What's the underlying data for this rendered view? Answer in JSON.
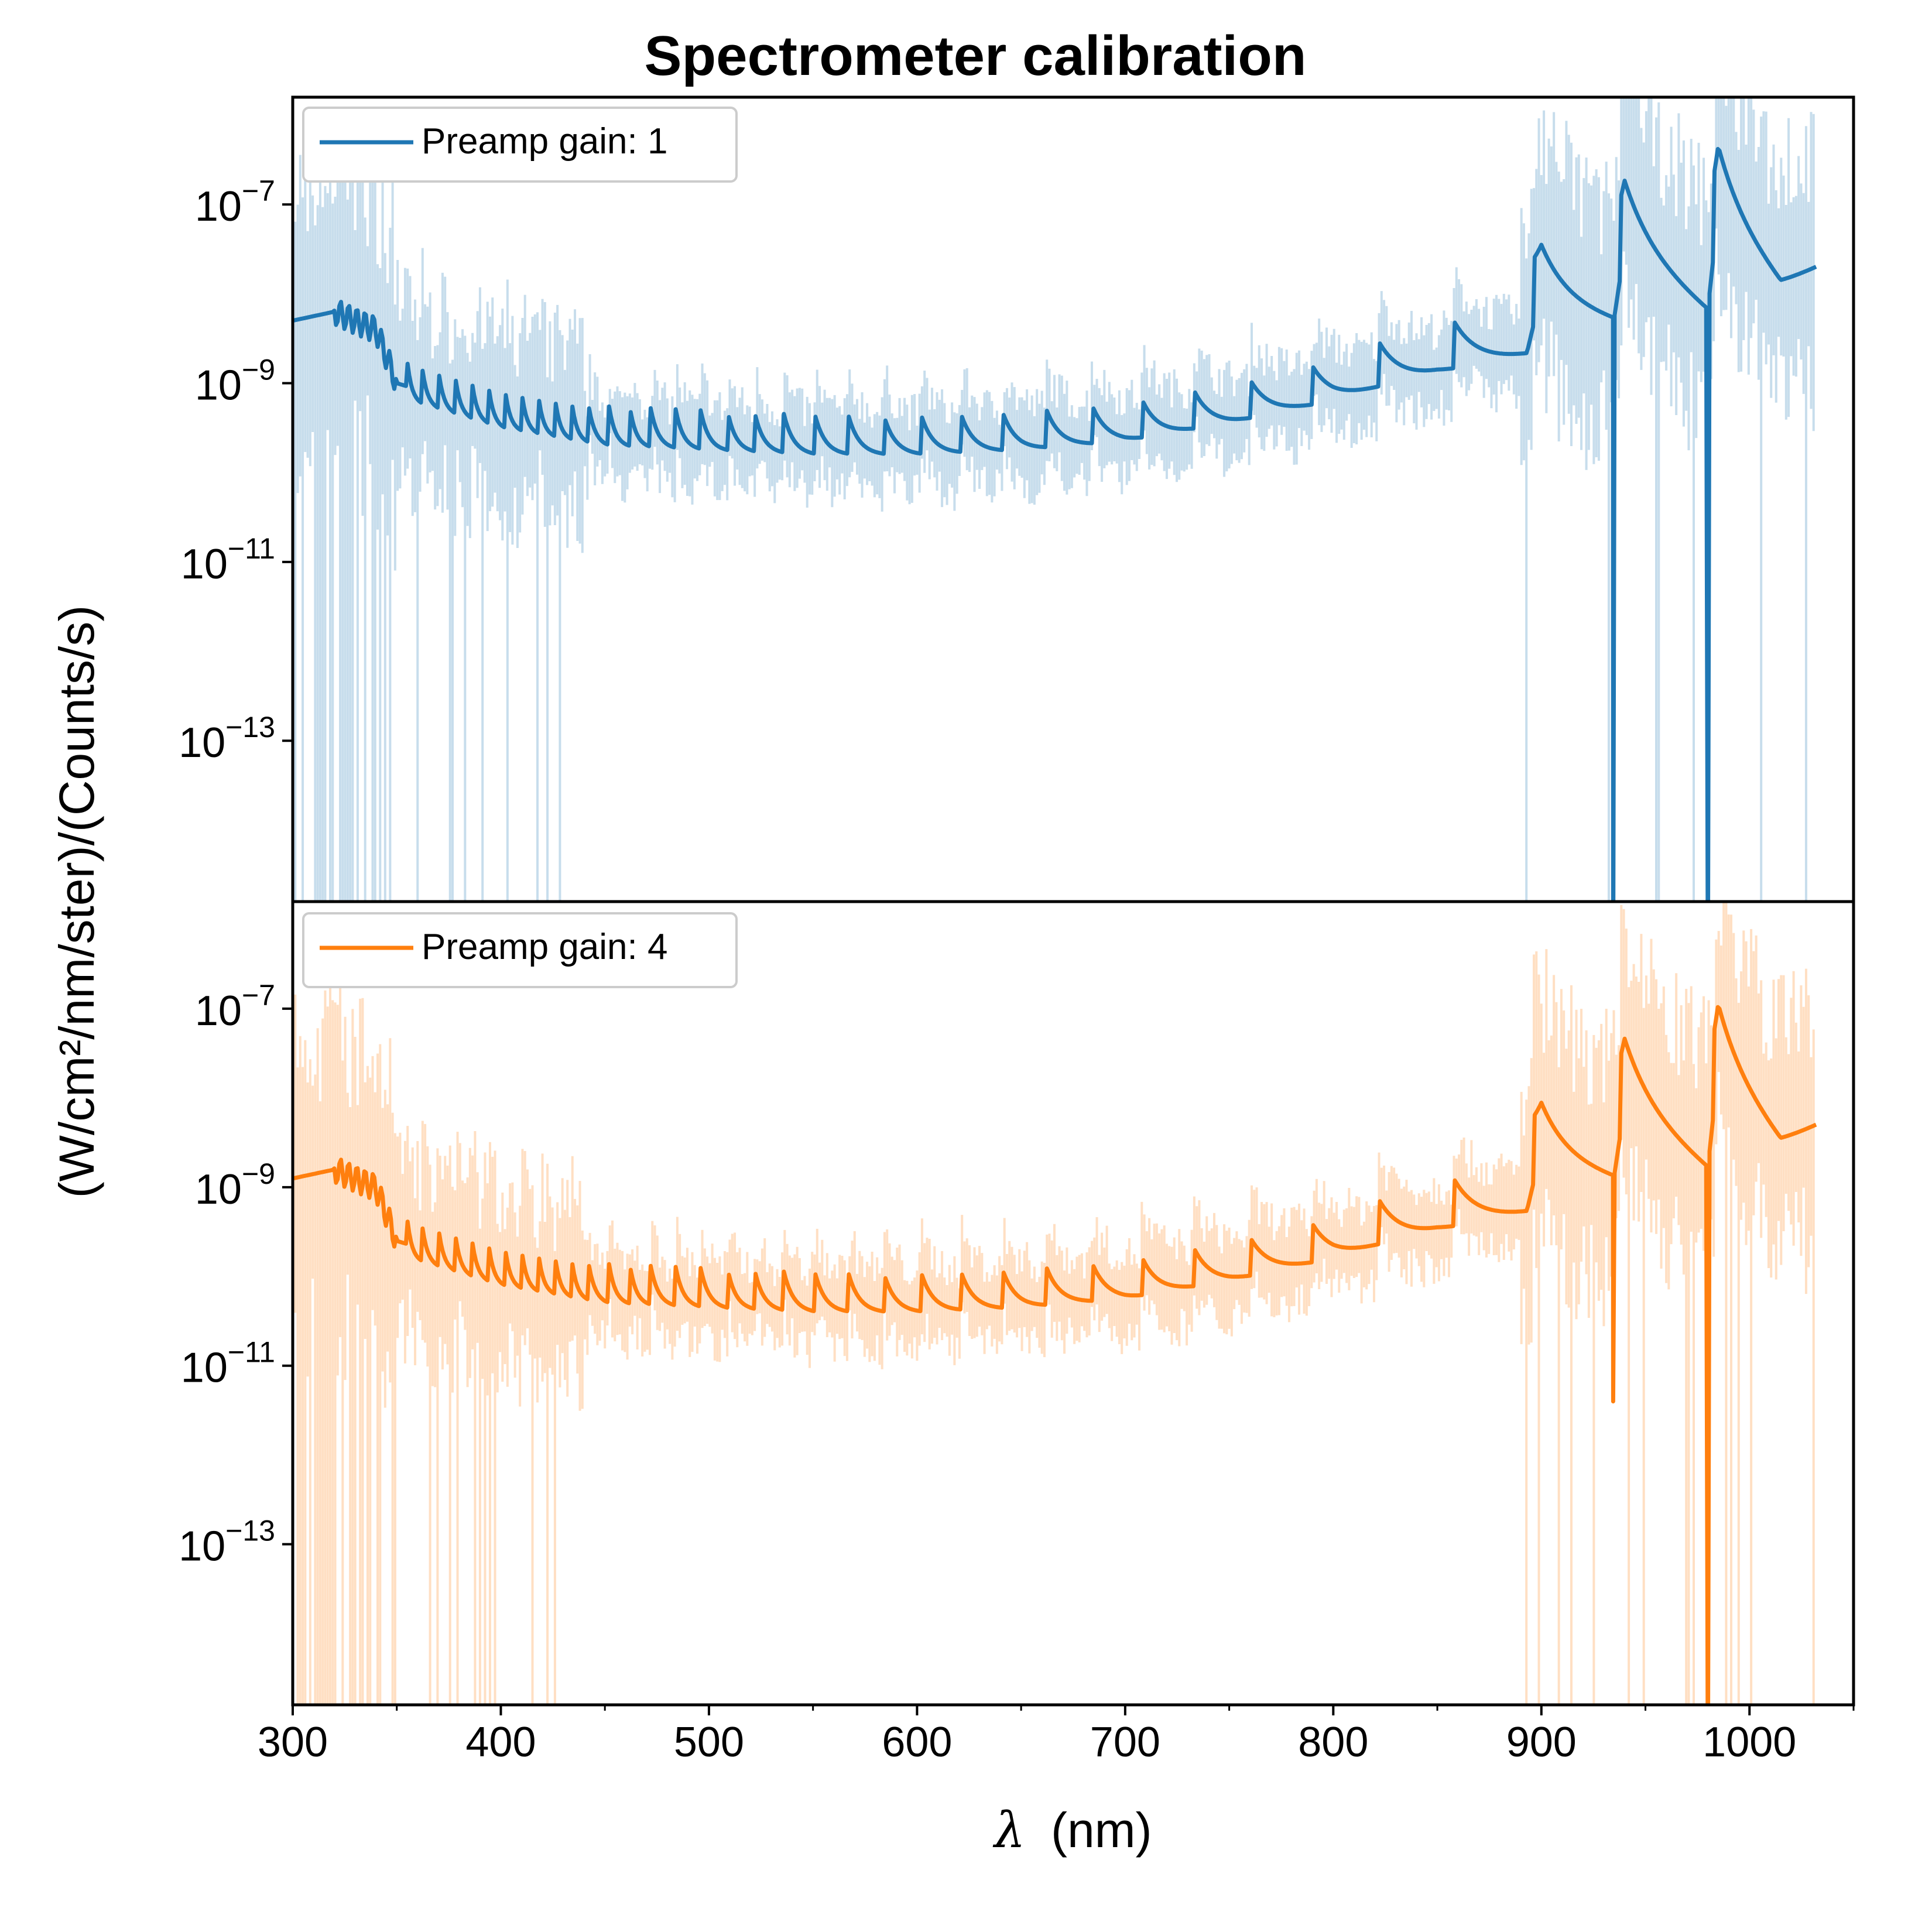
{
  "chart_data": {
    "type": "line",
    "title": "Spectrometer calibration",
    "xlabel_symbol": "λ",
    "xlabel_unit": "(nm)",
    "ylabel": "(W/cm²/nm/ster)/(Counts/s)",
    "xlim": [
      300,
      1050
    ],
    "x_ticks": [
      "300",
      "400",
      "500",
      "600",
      "700",
      "800",
      "900",
      "1000"
    ],
    "y_scale": "log",
    "y_tick_base": "10",
    "y_tick_exponents": [
      "−7",
      "−9",
      "−11",
      "−13"
    ],
    "panels": [
      {
        "legend": "Preamp gain: 1",
        "color": "#1f77b4",
        "band_color": "#1f77b4",
        "ylim_log10": [
          -14.8,
          -5.8
        ],
        "scale_factor": 1.0,
        "dip_at_935": "full",
        "legend_position": "upper-left"
      },
      {
        "legend": "Preamp gain: 4",
        "color": "#ff7f0e",
        "band_color": "#ff7f0e",
        "ylim_log10": [
          -14.8,
          -5.8
        ],
        "scale_factor": 0.25,
        "dip_at_935": "partial",
        "legend_position": "upper-left"
      }
    ],
    "x": [
      300,
      320,
      340,
      350,
      400,
      450,
      500,
      550,
      600,
      650,
      700,
      750,
      800,
      850,
      893,
      900,
      935,
      940,
      980,
      985,
      1015,
      1032
    ],
    "base_log10_gain1": [
      -8.3,
      -8.2,
      -8.4,
      -9.0,
      -9.35,
      -9.55,
      -9.6,
      -9.65,
      -9.65,
      -9.6,
      -9.5,
      -9.3,
      -9.05,
      -8.7,
      -8.5,
      -7.8,
      -8.0,
      -7.2,
      -7.9,
      -6.8,
      -7.6,
      -7.4
    ],
    "sawtooth_peaks_nm": [
      355,
      362,
      370,
      378,
      386,
      394,
      402,
      410,
      418,
      426,
      434,
      442,
      452,
      462,
      472,
      484,
      496,
      509,
      522,
      536,
      551,
      567,
      584,
      602,
      621,
      641,
      662,
      684,
      708,
      733,
      760,
      790,
      822,
      858,
      896,
      938,
      983
    ]
  }
}
